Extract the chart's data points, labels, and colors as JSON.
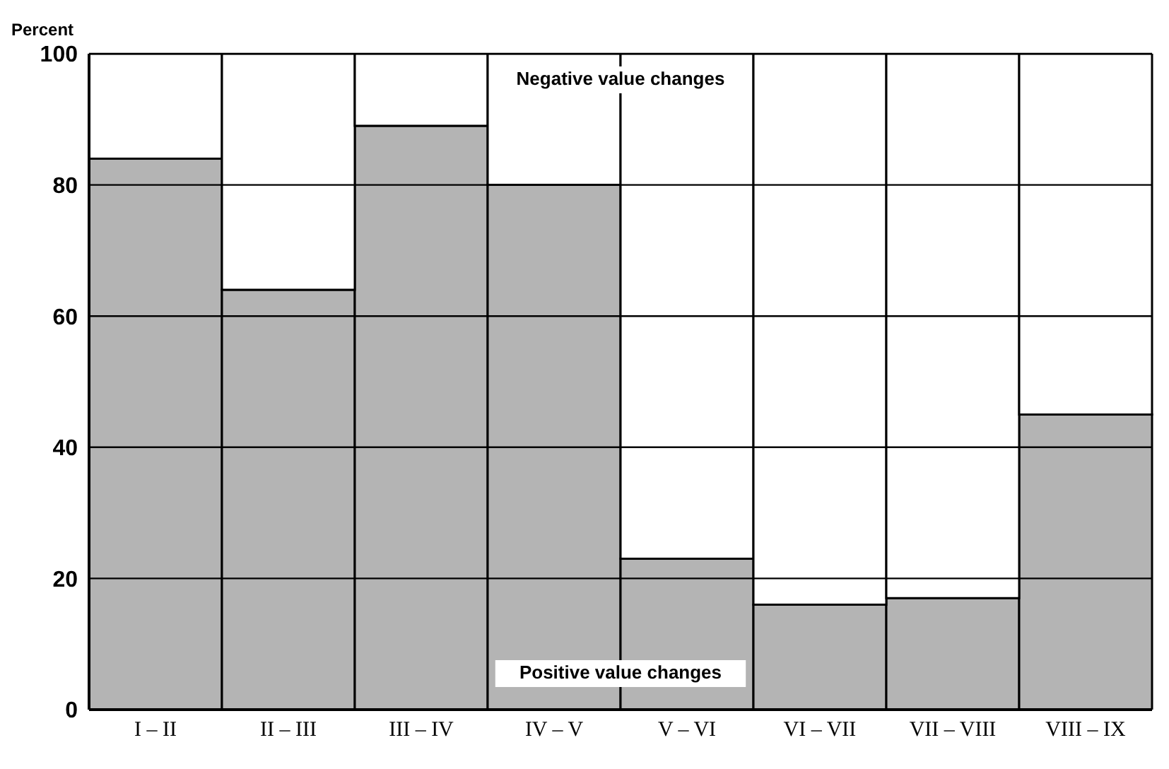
{
  "chart_data": {
    "type": "bar",
    "stacked": true,
    "ylabel": "Percent",
    "categories": [
      "I – II",
      "II – III",
      "III – IV",
      "IV – V",
      "V – VI",
      "VI – VII",
      "VII – VIII",
      "VIII – IX"
    ],
    "series": [
      {
        "name": "Positive value changes",
        "color": "#b4b4b4",
        "values": [
          84,
          64,
          89,
          80,
          23,
          16,
          17,
          45
        ]
      },
      {
        "name": "Negative value changes",
        "color": "#ffffff",
        "values": [
          16,
          36,
          11,
          20,
          77,
          84,
          83,
          55
        ]
      }
    ],
    "ylim": [
      0,
      100
    ],
    "yticks": [
      0,
      20,
      40,
      60,
      80,
      100
    ],
    "grid": "y",
    "legend": false
  }
}
